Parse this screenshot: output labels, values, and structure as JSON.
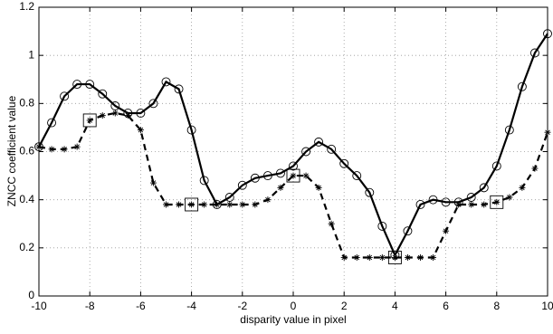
{
  "chart_data": {
    "type": "line",
    "x_label": "disparity value in pixel",
    "y_label": "ZNCC coefficient value",
    "x": [
      -10,
      -9.5,
      -9,
      -8.5,
      -8,
      -7.5,
      -7,
      -6.5,
      -6,
      -5.5,
      -5,
      -4.5,
      -4,
      -3.5,
      -3,
      -2.5,
      -2,
      -1.5,
      -1,
      -0.5,
      0,
      0.5,
      1,
      1.5,
      2,
      2.5,
      3,
      3.5,
      4,
      4.5,
      5,
      5.5,
      6,
      6.5,
      7,
      7.5,
      8,
      8.5,
      9,
      9.5,
      10
    ],
    "series": [
      {
        "color": "#000000",
        "line": "solid",
        "marker": "circle",
        "values": [
          0.62,
          0.72,
          0.83,
          0.88,
          0.88,
          0.84,
          0.79,
          0.76,
          0.76,
          0.8,
          0.89,
          0.86,
          0.69,
          0.48,
          0.38,
          0.41,
          0.46,
          0.49,
          0.5,
          0.51,
          0.54,
          0.6,
          0.64,
          0.61,
          0.55,
          0.5,
          0.43,
          0.29,
          0.17,
          0.27,
          0.38,
          0.4,
          0.39,
          0.39,
          0.41,
          0.45,
          0.54,
          0.69,
          0.87,
          1.01,
          1.09
        ]
      },
      {
        "color": "#000000",
        "line": "dashed",
        "marker": "asterisk",
        "values": [
          0.62,
          0.61,
          0.61,
          0.62,
          0.73,
          0.75,
          0.76,
          0.75,
          0.69,
          0.47,
          0.38,
          0.38,
          0.38,
          0.38,
          0.38,
          0.38,
          0.38,
          0.38,
          0.4,
          0.45,
          0.5,
          0.5,
          0.45,
          0.3,
          0.16,
          0.16,
          0.16,
          0.16,
          0.16,
          0.16,
          0.16,
          0.16,
          0.27,
          0.38,
          0.38,
          0.38,
          0.39,
          0.41,
          0.45,
          0.53,
          0.68
        ]
      },
      {
        "color": "#000000",
        "line": "none",
        "marker": "square",
        "x": [
          -8,
          -4,
          0,
          4,
          8
        ],
        "values": [
          0.73,
          0.38,
          0.5,
          0.16,
          0.39
        ]
      }
    ],
    "xlim": [
      -10,
      10
    ],
    "xticks": [
      -10,
      -8,
      -6,
      -4,
      -2,
      0,
      2,
      4,
      6,
      8,
      10
    ],
    "ylim": [
      0,
      1.2
    ],
    "yticks": [
      0,
      0.2,
      0.4,
      0.6,
      0.8,
      1,
      1.2
    ],
    "grid": true
  }
}
